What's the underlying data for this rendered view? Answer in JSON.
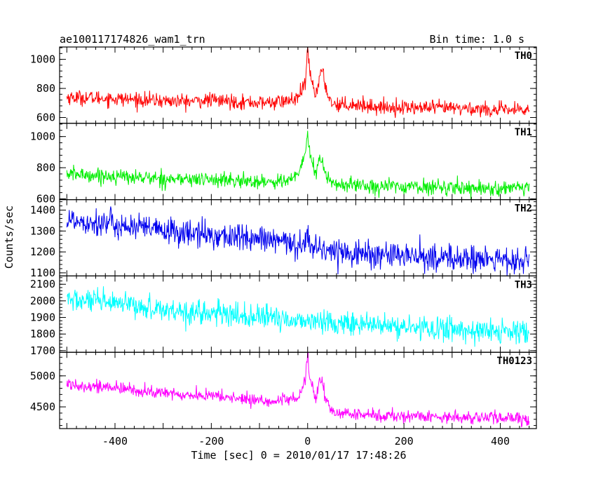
{
  "chart_data": {
    "type": "line",
    "title": "ae100117174826_wam1_trn",
    "subtitle": "Bin time: 1.0 s",
    "xlabel": "Time [sec] 0 = 2010/01/17 17:48:26",
    "ylabel": "Counts/sec",
    "xlim": [
      -515,
      475
    ],
    "xticks": [
      -400,
      -200,
      0,
      200,
      400
    ],
    "grid": false,
    "panels": [
      {
        "name": "TH0",
        "color": "#ff0000",
        "ylim": [
          560,
          1085
        ],
        "yticks": [
          600,
          800,
          1000
        ],
        "series": {
          "x": [
            -500,
            -450,
            -400,
            -350,
            -300,
            -250,
            -200,
            -150,
            -100,
            -50,
            -20,
            -5,
            0,
            2,
            5,
            10,
            15,
            20,
            25,
            30,
            35,
            40,
            50,
            60,
            100,
            150,
            200,
            250,
            300,
            350,
            400,
            460
          ],
          "y": [
            740,
            735,
            730,
            722,
            715,
            710,
            720,
            710,
            700,
            710,
            730,
            830,
            1070,
            990,
            900,
            840,
            760,
            800,
            880,
            920,
            850,
            780,
            700,
            690,
            690,
            670,
            670,
            665,
            665,
            660,
            650,
            650
          ],
          "noise": 42
        }
      },
      {
        "name": "TH1",
        "color": "#00ee00",
        "ylim": [
          595,
          1085
        ],
        "yticks": [
          600,
          800,
          1000
        ],
        "series": {
          "x": [
            -500,
            -450,
            -400,
            -350,
            -300,
            -250,
            -200,
            -150,
            -100,
            -50,
            -20,
            -5,
            0,
            2,
            5,
            10,
            15,
            20,
            25,
            30,
            35,
            40,
            50,
            60,
            100,
            150,
            200,
            250,
            300,
            350,
            400,
            460
          ],
          "y": [
            760,
            752,
            745,
            738,
            730,
            725,
            725,
            715,
            710,
            715,
            740,
            900,
            1040,
            960,
            880,
            830,
            760,
            790,
            860,
            840,
            790,
            740,
            700,
            690,
            690,
            680,
            680,
            675,
            675,
            670,
            665,
            665
          ],
          "noise": 40
        }
      },
      {
        "name": "TH2",
        "color": "#0000ee",
        "ylim": [
          1085,
          1450
        ],
        "yticks": [
          1100,
          1200,
          1300,
          1400
        ],
        "series": {
          "x": [
            -500,
            -450,
            -400,
            -350,
            -300,
            -250,
            -200,
            -150,
            -100,
            -50,
            -5,
            0,
            5,
            50,
            100,
            150,
            200,
            250,
            300,
            350,
            400,
            460
          ],
          "y": [
            1355,
            1345,
            1330,
            1315,
            1300,
            1290,
            1280,
            1270,
            1260,
            1245,
            1235,
            1320,
            1225,
            1205,
            1195,
            1185,
            1180,
            1175,
            1170,
            1165,
            1160,
            1150
          ],
          "noise": 55
        }
      },
      {
        "name": "TH3",
        "color": "#00ffff",
        "ylim": [
          1690,
          2150
        ],
        "yticks": [
          1700,
          1800,
          1900,
          2000,
          2100
        ],
        "series": {
          "x": [
            -500,
            -450,
            -400,
            -350,
            -300,
            -250,
            -200,
            -150,
            -100,
            -50,
            0,
            50,
            100,
            150,
            200,
            250,
            300,
            350,
            400,
            460
          ],
          "y": [
            2010,
            1995,
            1980,
            1965,
            1950,
            1935,
            1925,
            1910,
            1900,
            1890,
            1880,
            1870,
            1860,
            1850,
            1840,
            1835,
            1830,
            1820,
            1815,
            1800
          ],
          "noise": 60
        }
      },
      {
        "name": "TH0123",
        "color": "#ff00ff",
        "ylim": [
          4150,
          5380
        ],
        "yticks": [
          4500,
          5000
        ],
        "series": {
          "x": [
            -500,
            -450,
            -400,
            -350,
            -300,
            -250,
            -200,
            -150,
            -100,
            -50,
            -20,
            -5,
            0,
            2,
            5,
            10,
            15,
            20,
            25,
            30,
            35,
            40,
            50,
            60,
            100,
            150,
            200,
            250,
            300,
            350,
            400,
            460
          ],
          "y": [
            4870,
            4840,
            4800,
            4760,
            4720,
            4690,
            4680,
            4640,
            4600,
            4590,
            4640,
            4950,
            5370,
            5150,
            4950,
            4800,
            4620,
            4720,
            4950,
            4900,
            4700,
            4560,
            4440,
            4400,
            4380,
            4360,
            4350,
            4345,
            4340,
            4330,
            4320,
            4300
          ],
          "noise": 85
        }
      }
    ]
  }
}
